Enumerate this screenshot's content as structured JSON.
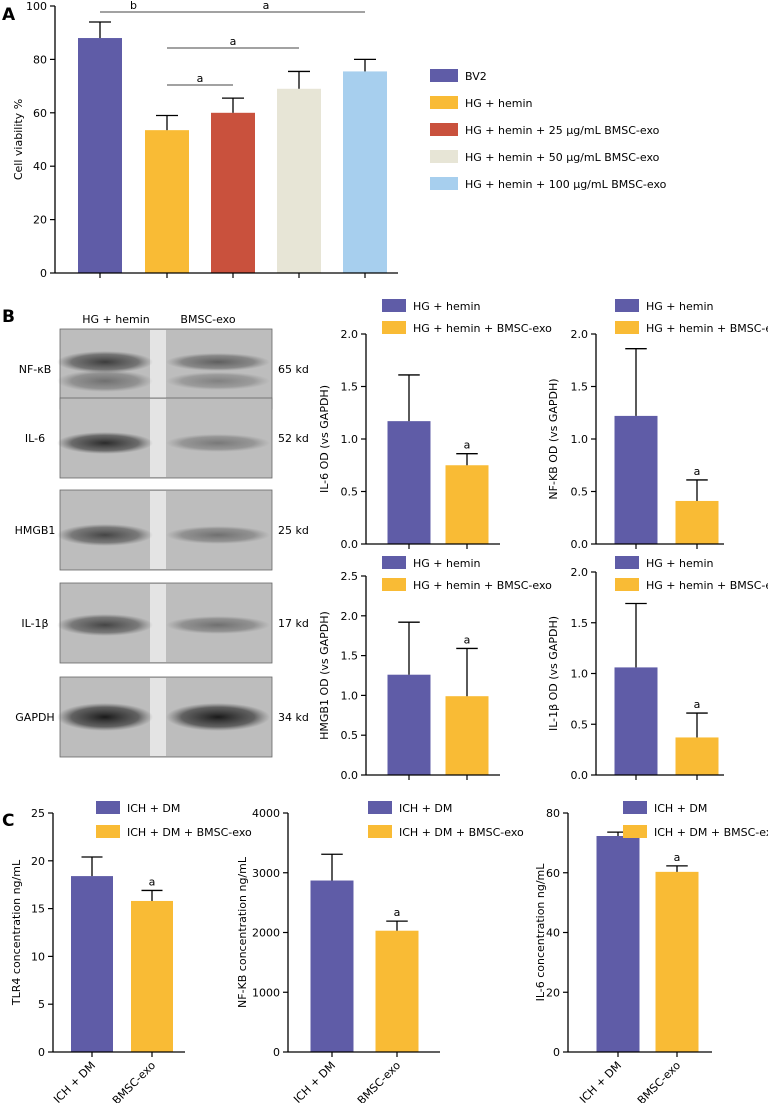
{
  "panel_labels": {
    "a": "A",
    "b": "B",
    "c": "C"
  },
  "colors": {
    "bv2": "#5f5ca7",
    "hemin": "#f9bb35",
    "dose25": "#c9513d",
    "dose50": "#e7e5d6",
    "dose100": "#a7cfee",
    "axis": "#000000"
  },
  "blot": {
    "headers": [
      "HG + hemin",
      "BMSC-exo"
    ],
    "rows": [
      {
        "name": "NF-κB",
        "size": "65 kd"
      },
      {
        "name": "IL-6",
        "size": "52 kd"
      },
      {
        "name": "HMGB1",
        "size": "25 kd"
      },
      {
        "name": "IL-1β",
        "size": "17 kd"
      },
      {
        "name": "GAPDH",
        "size": "34 kd"
      }
    ]
  },
  "chart_data": [
    {
      "id": "A",
      "type": "bar",
      "title": "",
      "xlabel": "",
      "ylabel": "Cell viability %",
      "ylim": [
        0,
        100
      ],
      "yticks": [
        0,
        20,
        40,
        60,
        80,
        100
      ],
      "categories": [
        "BV2",
        "HG + hemin",
        "HG + hemin + 25 μg/mL BMSC-exo",
        "HG + hemin + 50 μg/mL BMSC-exo",
        "HG + hemin + 100 μg/mL BMSC-exo"
      ],
      "values": [
        88,
        53.5,
        60,
        69,
        75.5
      ],
      "errors": [
        6,
        5.5,
        5.5,
        6.5,
        4.5
      ],
      "colors": [
        "#5f5ca7",
        "#f9bb35",
        "#c9513d",
        "#e7e5d6",
        "#a7cfee"
      ],
      "show_xticklabels": false,
      "legend": [
        "BV2",
        "HG + hemin",
        "HG + hemin + 25 μg/mL BMSC-exo",
        "HG + hemin + 50 μg/mL BMSC-exo",
        "HG + hemin + 100 μg/mL BMSC-exo"
      ],
      "legend_position": "right",
      "significance": [
        {
          "from": 0,
          "to": 1,
          "label": "b"
        },
        {
          "from": 1,
          "to": 4,
          "label": "a"
        },
        {
          "from": 1,
          "to": 3,
          "label": "a"
        },
        {
          "from": 1,
          "to": 2,
          "label": "a"
        }
      ]
    },
    {
      "id": "B-IL6",
      "type": "bar",
      "ylabel": "IL-6 OD (vs GAPDH)",
      "ylim": [
        0,
        2.0
      ],
      "yticks": [
        0.0,
        0.5,
        1.0,
        1.5,
        2.0
      ],
      "tick_decimals": 1,
      "categories": [
        "HG + hemin",
        "HG + hemin + BMSC-exo"
      ],
      "values": [
        1.17,
        0.75
      ],
      "errors": [
        0.44,
        0.11
      ],
      "colors": [
        "#5f5ca7",
        "#f9bb35"
      ],
      "marks": [
        "",
        "a"
      ],
      "show_xticklabels": false,
      "legend": [
        "HG + hemin",
        "HG + hemin + BMSC-exo"
      ],
      "legend_position": "top"
    },
    {
      "id": "B-NFkB",
      "type": "bar",
      "ylabel": "NF-KB OD (vs GAPDH)",
      "ylim": [
        0,
        2.0
      ],
      "yticks": [
        0.0,
        0.5,
        1.0,
        1.5,
        2.0
      ],
      "tick_decimals": 1,
      "categories": [
        "HG + hemin",
        "HG + hemin + BMSC-exo"
      ],
      "values": [
        1.22,
        0.41
      ],
      "errors": [
        0.64,
        0.2
      ],
      "colors": [
        "#5f5ca7",
        "#f9bb35"
      ],
      "marks": [
        "",
        "a"
      ],
      "show_xticklabels": false,
      "legend": [
        "HG + hemin",
        "HG + hemin + BMSC-exo"
      ],
      "legend_position": "top"
    },
    {
      "id": "B-HMGB1",
      "type": "bar",
      "ylabel": "HMGB1 OD (vs GAPDH)",
      "ylim": [
        0,
        2.5
      ],
      "yticks": [
        0.0,
        0.5,
        1.0,
        1.5,
        2.0,
        2.5
      ],
      "tick_decimals": 1,
      "categories": [
        "HG + hemin",
        "HG + hemin + BMSC-exo"
      ],
      "values": [
        1.26,
        0.99
      ],
      "errors": [
        0.66,
        0.6
      ],
      "colors": [
        "#5f5ca7",
        "#f9bb35"
      ],
      "marks": [
        "",
        "a"
      ],
      "show_xticklabels": false,
      "legend": [
        "HG + hemin",
        "HG + hemin + BMSC-exo"
      ],
      "legend_position": "top"
    },
    {
      "id": "B-IL1b",
      "type": "bar",
      "ylabel": "IL-1β OD (vs GAPDH)",
      "ylim": [
        0,
        2.0
      ],
      "yticks": [
        0.0,
        0.5,
        1.0,
        1.5,
        2.0
      ],
      "tick_decimals": 1,
      "categories": [
        "HG + hemin",
        "HG + hemin + BMSC-exo"
      ],
      "values": [
        1.06,
        0.37
      ],
      "errors": [
        0.63,
        0.24
      ],
      "colors": [
        "#5f5ca7",
        "#f9bb35"
      ],
      "marks": [
        "",
        "a"
      ],
      "show_xticklabels": false,
      "legend": [
        "HG + hemin",
        "HG + hemin + BMSC-exo"
      ],
      "legend_position": "top"
    },
    {
      "id": "C-TLR4",
      "type": "bar",
      "ylabel": "TLR4  concentration ng/mL",
      "ylim": [
        0,
        25
      ],
      "yticks": [
        0,
        5,
        10,
        15,
        20,
        25
      ],
      "tick_decimals": 0,
      "categories": [
        "ICH + DM",
        "BMSC-exo"
      ],
      "values": [
        18.4,
        15.8
      ],
      "errors": [
        2.0,
        1.1
      ],
      "colors": [
        "#5f5ca7",
        "#f9bb35"
      ],
      "marks": [
        "",
        "a"
      ],
      "show_xticklabels": true,
      "legend": [
        "ICH + DM",
        "ICH + DM + BMSC-exo"
      ],
      "legend_position": "top"
    },
    {
      "id": "C-NFkB",
      "type": "bar",
      "ylabel": "NF-KB  concentration ng/mL",
      "ylim": [
        0,
        4000
      ],
      "yticks": [
        0,
        1000,
        2000,
        3000,
        4000
      ],
      "tick_decimals": 0,
      "categories": [
        "ICH + DM",
        "BMSC-exo"
      ],
      "values": [
        2870,
        2030
      ],
      "errors": [
        440,
        160
      ],
      "colors": [
        "#5f5ca7",
        "#f9bb35"
      ],
      "marks": [
        "",
        "a"
      ],
      "show_xticklabels": true,
      "legend": [
        "ICH + DM",
        "ICH + DM + BMSC-exo"
      ],
      "legend_position": "top"
    },
    {
      "id": "C-IL6",
      "type": "bar",
      "ylabel": "IL-6  concentration ng/mL",
      "ylim": [
        0,
        80
      ],
      "yticks": [
        0,
        20,
        40,
        60,
        80
      ],
      "tick_decimals": 0,
      "categories": [
        "ICH + DM",
        "BMSC-exo"
      ],
      "values": [
        72.3,
        60.3
      ],
      "errors": [
        1.3,
        2.0
      ],
      "colors": [
        "#5f5ca7",
        "#f9bb35"
      ],
      "marks": [
        "",
        "a"
      ],
      "show_xticklabels": true,
      "legend": [
        "ICH + DM",
        "ICH + DM + BMSC-exo"
      ],
      "legend_position": "top"
    }
  ]
}
